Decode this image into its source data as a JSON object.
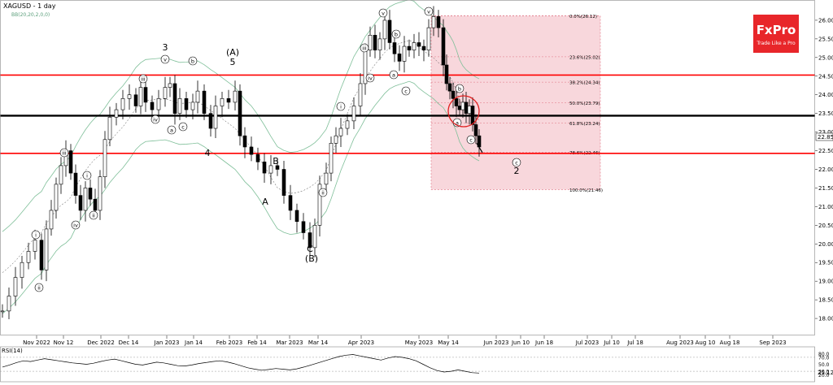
{
  "header": {
    "symbol": "XAGUSD - 1 day",
    "indicator": "BB(20,20,2,0,0)"
  },
  "logo": {
    "brand": "FxPro",
    "tagline": "Trade Like a Pro",
    "color": "#e8262a"
  },
  "colors": {
    "resistance": "#ff0000",
    "pivot": "#000000",
    "band": "#7fbf99",
    "zone": "#f8d7dc"
  },
  "chart_data": {
    "type": "candlestick",
    "title": "XAGUSD - 1 day",
    "ylim": [
      17.5,
      26.5
    ],
    "y_ticks": [
      "26.00",
      "25.50",
      "25.00",
      "24.50",
      "24.00",
      "23.50",
      "23.00",
      "22.50",
      "22.00",
      "21.50",
      "21.00",
      "20.50",
      "20.00",
      "19.50",
      "19.00",
      "18.50",
      "18.00"
    ],
    "x_ticks": [
      "Nov 2022",
      "Nov 12",
      "Dec 2022",
      "Dec 14",
      "Jan 2023",
      "Jan 14",
      "Feb 2023",
      "Feb 14",
      "Mar 2023",
      "Mar 14",
      "Apr 2023",
      "May 2023",
      "May 14",
      "Jun 2023",
      "Jun 10",
      "Jun 18",
      "Jul 2023",
      "Jul 10",
      "Jul 18",
      "Aug 2023",
      "Aug 10",
      "Aug 18",
      "Sep 2023"
    ],
    "current_price": "22.85",
    "horizontal_lines": [
      {
        "role": "resistance",
        "value": 24.53
      },
      {
        "role": "pivot",
        "value": 23.44
      },
      {
        "role": "support",
        "value": 22.43
      }
    ],
    "fibonacci": [
      {
        "label": "0.0%(26.12)",
        "value": 26.12
      },
      {
        "label": "23.6%(25.02)",
        "value": 25.02
      },
      {
        "label": "38.2%(24.34)",
        "value": 24.34
      },
      {
        "label": "50.0%(23.79)",
        "value": 23.79
      },
      {
        "label": "61.8%(23.24)",
        "value": 23.24
      },
      {
        "label": "78.6%(22.46)",
        "value": 22.46
      },
      {
        "label": "100.0%(21.46)",
        "value": 21.46
      }
    ],
    "wave_labels": [
      {
        "text": "3",
        "x": "Jan 2",
        "y": 25.7
      },
      {
        "text": "5",
        "x": "Feb 2",
        "y": 25.3
      },
      {
        "text": "(A)",
        "x": "Feb 2",
        "y": 25.6
      },
      {
        "text": "4",
        "x": "Jan 18",
        "y": 22.6
      },
      {
        "text": "A",
        "x": "Feb 28",
        "y": 21.0
      },
      {
        "text": "B",
        "x": "Mar 3",
        "y": 22.3
      },
      {
        "text": "C",
        "x": "Mar 10",
        "y": 19.6
      },
      {
        "text": "(B)",
        "x": "Mar 10",
        "y": 19.25
      },
      {
        "text": "2",
        "x": "Jun 5",
        "y": 22.0
      }
    ],
    "circled_labels": [
      "i",
      "ii",
      "iii",
      "iv",
      "v",
      "a",
      "b",
      "c"
    ],
    "rsi": {
      "title": "RSI(14)",
      "ylim": [
        0,
        100
      ],
      "ticks": [
        "80.0",
        "70.0",
        "50.0",
        "30.0",
        "20.0"
      ],
      "current": "25.12",
      "values": [
        42,
        48,
        55,
        60,
        58,
        62,
        66,
        63,
        60,
        57,
        54,
        52,
        50,
        53,
        58,
        62,
        65,
        60,
        55,
        50,
        48,
        52,
        56,
        54,
        50,
        46,
        45,
        48,
        52,
        55,
        58,
        60,
        57,
        52,
        46,
        40,
        36,
        33,
        35,
        38,
        36,
        34,
        37,
        42,
        48,
        54,
        60,
        66,
        72,
        76,
        78,
        74,
        70,
        66,
        62,
        68,
        72,
        70,
        66,
        60,
        50,
        40,
        32,
        28,
        30,
        34,
        30,
        26,
        25
      ]
    }
  }
}
